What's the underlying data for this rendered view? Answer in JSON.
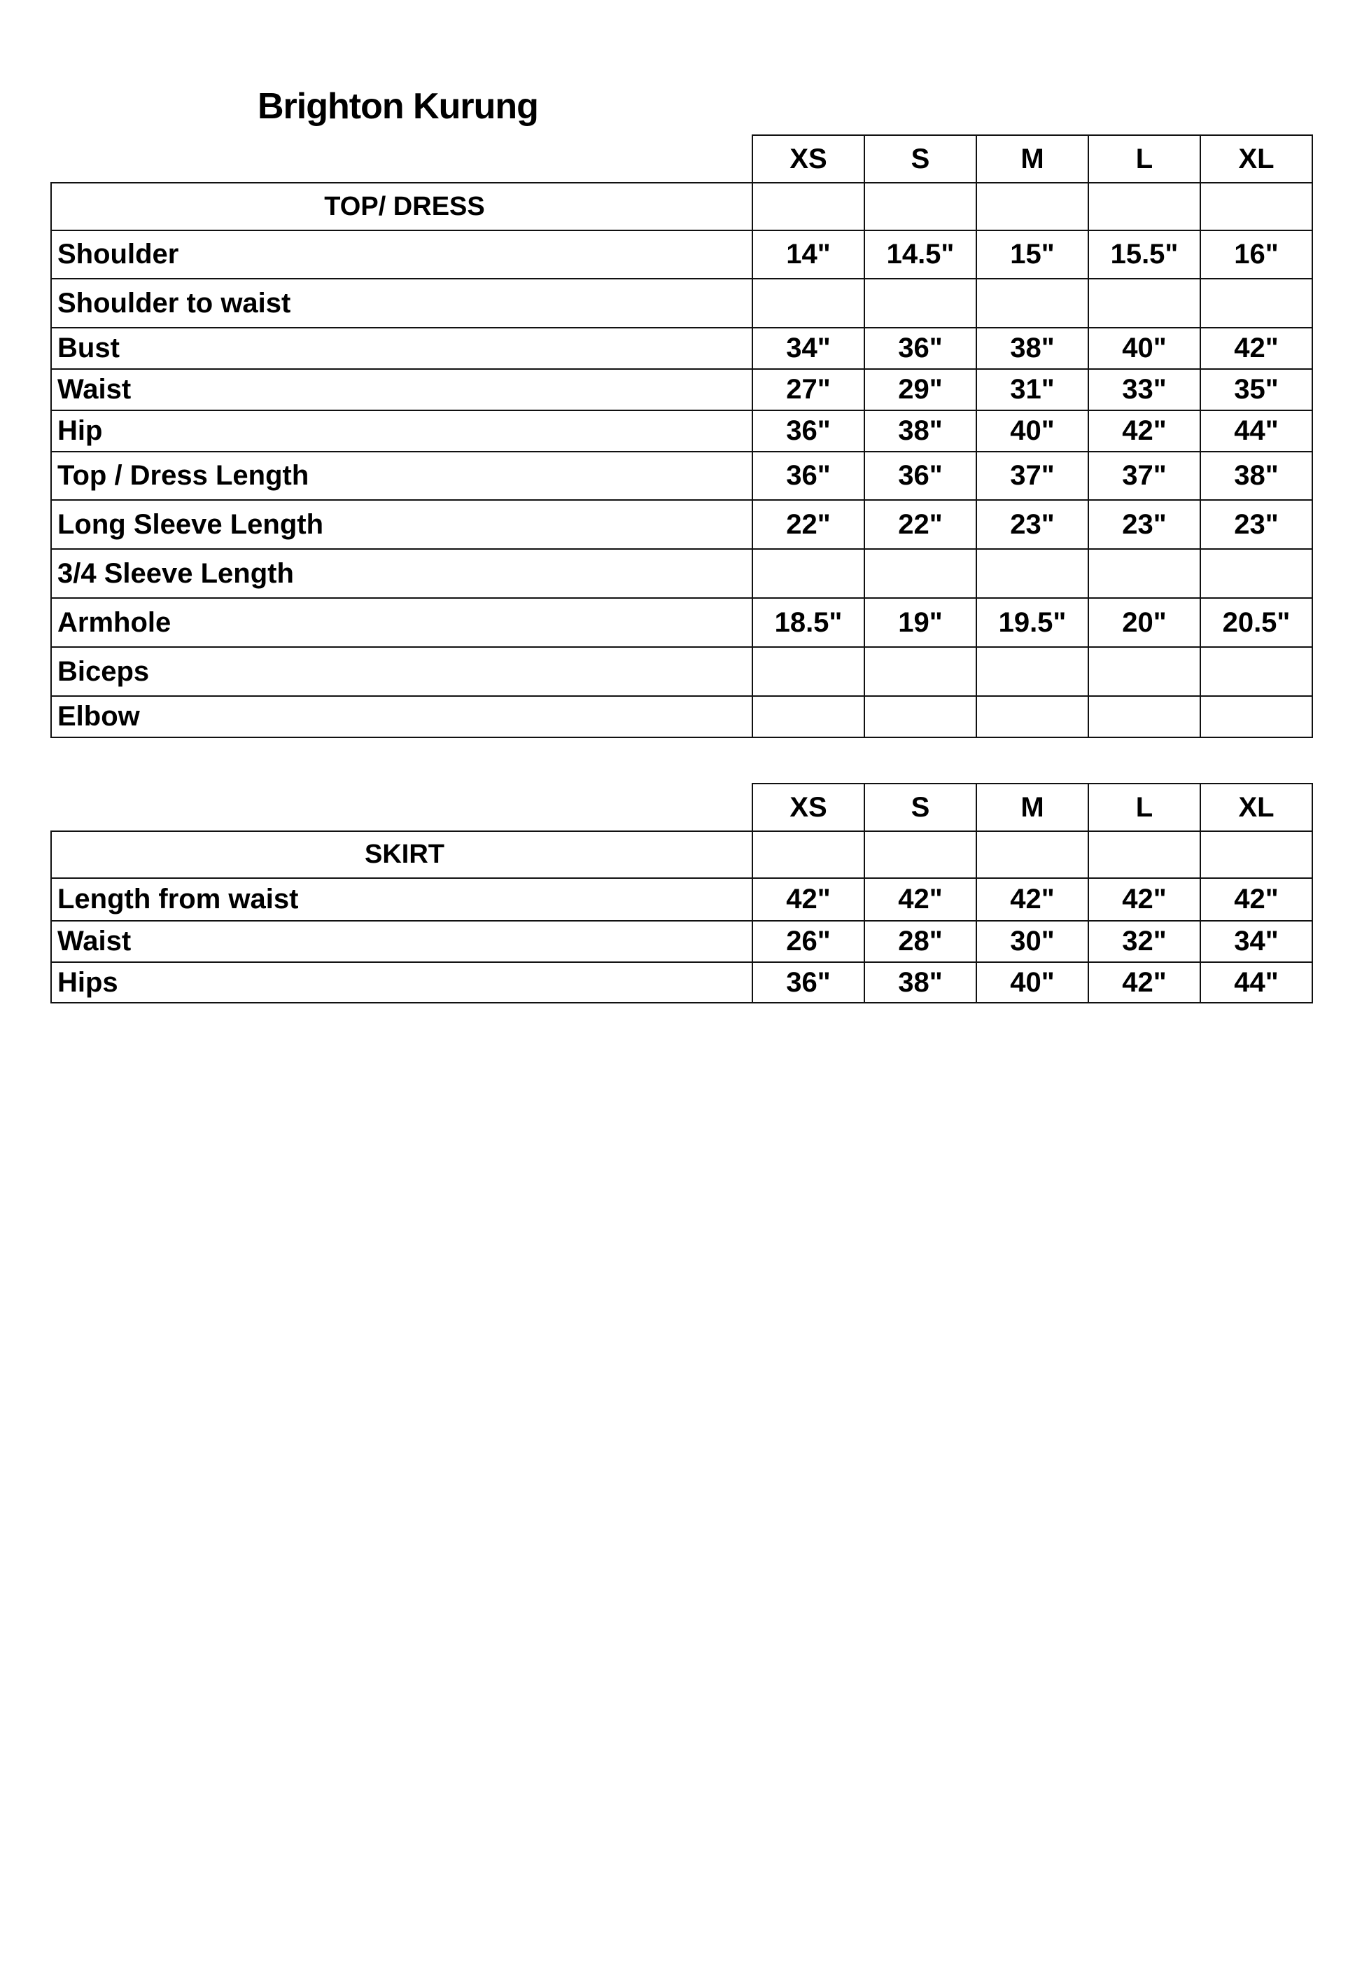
{
  "title": "Brighton Kurung",
  "sizes": [
    "XS",
    "S",
    "M",
    "L",
    "XL"
  ],
  "top_table": {
    "section": "TOP/ DRESS",
    "rows": [
      {
        "label": "Shoulder",
        "values": [
          "14\"",
          "14.5\"",
          "15\"",
          "15.5\"",
          "16\""
        ]
      },
      {
        "label": "Shoulder to waist",
        "values": [
          "",
          "",
          "",
          "",
          ""
        ]
      },
      {
        "label": "Bust",
        "values": [
          "34\"",
          "36\"",
          "38\"",
          "40\"",
          "42\""
        ]
      },
      {
        "label": "Waist",
        "values": [
          "27\"",
          "29\"",
          "31\"",
          "33\"",
          "35\""
        ]
      },
      {
        "label": "Hip",
        "values": [
          "36\"",
          "38\"",
          "40\"",
          "42\"",
          "44\""
        ]
      },
      {
        "label": "Top / Dress Length",
        "values": [
          "36\"",
          "36\"",
          "37\"",
          "37\"",
          "38\""
        ]
      },
      {
        "label": "Long Sleeve Length",
        "values": [
          "22\"",
          "22\"",
          "23\"",
          "23\"",
          "23\""
        ]
      },
      {
        "label": "3/4 Sleeve Length",
        "values": [
          "",
          "",
          "",
          "",
          ""
        ]
      },
      {
        "label": "Armhole",
        "values": [
          "18.5\"",
          "19\"",
          "19.5\"",
          "20\"",
          "20.5\""
        ]
      },
      {
        "label": "Biceps",
        "values": [
          "",
          "",
          "",
          "",
          ""
        ]
      },
      {
        "label": "Elbow",
        "values": [
          "",
          "",
          "",
          "",
          ""
        ]
      }
    ]
  },
  "skirt_table": {
    "section": "SKIRT",
    "rows": [
      {
        "label": "Length from waist",
        "values": [
          "42\"",
          "42\"",
          "42\"",
          "42\"",
          "42\""
        ]
      },
      {
        "label": "Waist",
        "values": [
          "26\"",
          "28\"",
          "30\"",
          "32\"",
          "34\""
        ]
      },
      {
        "label": "Hips",
        "values": [
          "36\"",
          "38\"",
          "40\"",
          "42\"",
          "44\""
        ]
      }
    ]
  }
}
